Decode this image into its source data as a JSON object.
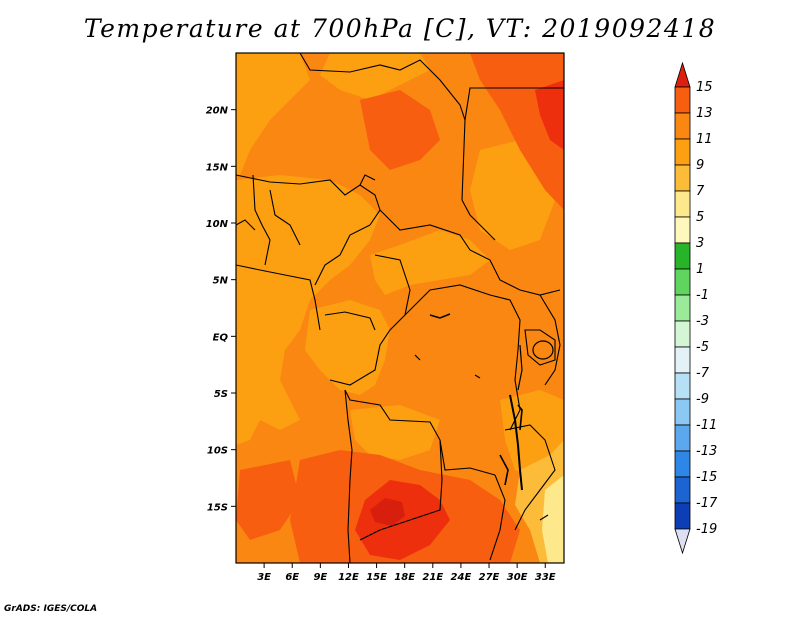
{
  "title": "Temperature at 700hPa [C], VT: 2019092418",
  "footer": "GrADS: IGES/COLA",
  "map": {
    "lon_range": [
      0,
      35
    ],
    "lat_range": [
      -20,
      25
    ],
    "lat_ticks": [
      {
        "label": "20N",
        "value": 20
      },
      {
        "label": "15N",
        "value": 15
      },
      {
        "label": "10N",
        "value": 10
      },
      {
        "label": "5N",
        "value": 5
      },
      {
        "label": "EQ",
        "value": 0
      },
      {
        "label": "5S",
        "value": -5
      },
      {
        "label": "10S",
        "value": -10
      },
      {
        "label": "15S",
        "value": -15
      }
    ],
    "lon_ticks": [
      {
        "label": "3E",
        "value": 3
      },
      {
        "label": "6E",
        "value": 6
      },
      {
        "label": "9E",
        "value": 9
      },
      {
        "label": "12E",
        "value": 12
      },
      {
        "label": "15E",
        "value": 15
      },
      {
        "label": "18E",
        "value": 18
      },
      {
        "label": "21E",
        "value": 21
      },
      {
        "label": "24E",
        "value": 24
      },
      {
        "label": "27E",
        "value": 27
      },
      {
        "label": "30E",
        "value": 30
      },
      {
        "label": "33E",
        "value": 33
      }
    ]
  },
  "colorbar": {
    "levels": [
      "15",
      "13",
      "11",
      "9",
      "7",
      "5",
      "3",
      "1",
      "-1",
      "-3",
      "-5",
      "-7",
      "-9",
      "-11",
      "-13",
      "-15",
      "-17",
      "-19"
    ],
    "colors": [
      "#ee2f0e",
      "#f75e0f",
      "#f98711",
      "#fca012",
      "#fcbc3a",
      "#fee88c",
      "#fef8bc",
      "#28b428",
      "#5fd55f",
      "#9aea9a",
      "#d4f6d4",
      "#e2f2f6",
      "#b6e0f6",
      "#8cc8f4",
      "#5ca8ee",
      "#2e86e6",
      "#1c64d2",
      "#0d3eb6",
      "#081470"
    ],
    "top_arrow_color": "#dc2010",
    "bottom_arrow_color": "#dde0f2"
  }
}
